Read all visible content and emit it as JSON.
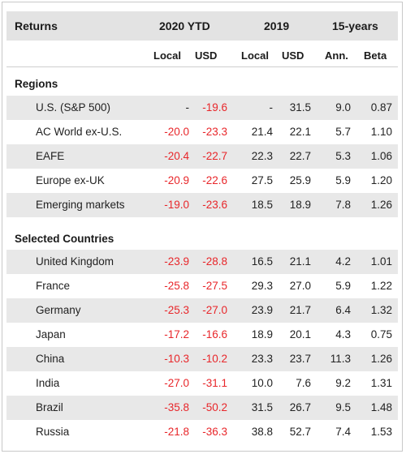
{
  "header": {
    "returns": "Returns",
    "ytd": "2020 YTD",
    "y2019": "2019",
    "y15": "15-years",
    "local1": "Local",
    "usd1": "USD",
    "local2": "Local",
    "usd2": "USD",
    "ann": "Ann.",
    "beta": "Beta"
  },
  "sections": [
    {
      "title": "Regions",
      "rows": [
        {
          "name": "U.S. (S&P 500)",
          "ytd_local": "-",
          "ytd_usd": "-19.6",
          "y2019_local": "-",
          "y2019_usd": "31.5",
          "ann": "9.0",
          "beta": "0.87"
        },
        {
          "name": "AC World ex-U.S.",
          "ytd_local": "-20.0",
          "ytd_usd": "-23.3",
          "y2019_local": "21.4",
          "y2019_usd": "22.1",
          "ann": "5.7",
          "beta": "1.10"
        },
        {
          "name": "EAFE",
          "ytd_local": "-20.4",
          "ytd_usd": "-22.7",
          "y2019_local": "22.3",
          "y2019_usd": "22.7",
          "ann": "5.3",
          "beta": "1.06"
        },
        {
          "name": "Europe ex-UK",
          "ytd_local": "-20.9",
          "ytd_usd": "-22.6",
          "y2019_local": "27.5",
          "y2019_usd": "25.9",
          "ann": "5.9",
          "beta": "1.20"
        },
        {
          "name": "Emerging markets",
          "ytd_local": "-19.0",
          "ytd_usd": "-23.6",
          "y2019_local": "18.5",
          "y2019_usd": "18.9",
          "ann": "7.8",
          "beta": "1.26"
        }
      ]
    },
    {
      "title": "Selected Countries",
      "rows": [
        {
          "name": "United Kingdom",
          "ytd_local": "-23.9",
          "ytd_usd": "-28.8",
          "y2019_local": "16.5",
          "y2019_usd": "21.1",
          "ann": "4.2",
          "beta": "1.01"
        },
        {
          "name": "France",
          "ytd_local": "-25.8",
          "ytd_usd": "-27.5",
          "y2019_local": "29.3",
          "y2019_usd": "27.0",
          "ann": "5.9",
          "beta": "1.22"
        },
        {
          "name": "Germany",
          "ytd_local": "-25.3",
          "ytd_usd": "-27.0",
          "y2019_local": "23.9",
          "y2019_usd": "21.7",
          "ann": "6.4",
          "beta": "1.32"
        },
        {
          "name": "Japan",
          "ytd_local": "-17.2",
          "ytd_usd": "-16.6",
          "y2019_local": "18.9",
          "y2019_usd": "20.1",
          "ann": "4.3",
          "beta": "0.75"
        },
        {
          "name": "China",
          "ytd_local": "-10.3",
          "ytd_usd": "-10.2",
          "y2019_local": "23.3",
          "y2019_usd": "23.7",
          "ann": "11.3",
          "beta": "1.26"
        },
        {
          "name": "India",
          "ytd_local": "-27.0",
          "ytd_usd": "-31.1",
          "y2019_local": "10.0",
          "y2019_usd": "7.6",
          "ann": "9.2",
          "beta": "1.31"
        },
        {
          "name": "Brazil",
          "ytd_local": "-35.8",
          "ytd_usd": "-50.2",
          "y2019_local": "31.5",
          "y2019_usd": "26.7",
          "ann": "9.5",
          "beta": "1.48"
        },
        {
          "name": "Russia",
          "ytd_local": "-21.8",
          "ytd_usd": "-36.3",
          "y2019_local": "38.8",
          "y2019_usd": "52.7",
          "ann": "7.4",
          "beta": "1.53"
        }
      ]
    }
  ],
  "colors": {
    "negative": "#e8262a",
    "header_bg": "#e3e3e3",
    "row_shade": "#e8e8e8"
  }
}
